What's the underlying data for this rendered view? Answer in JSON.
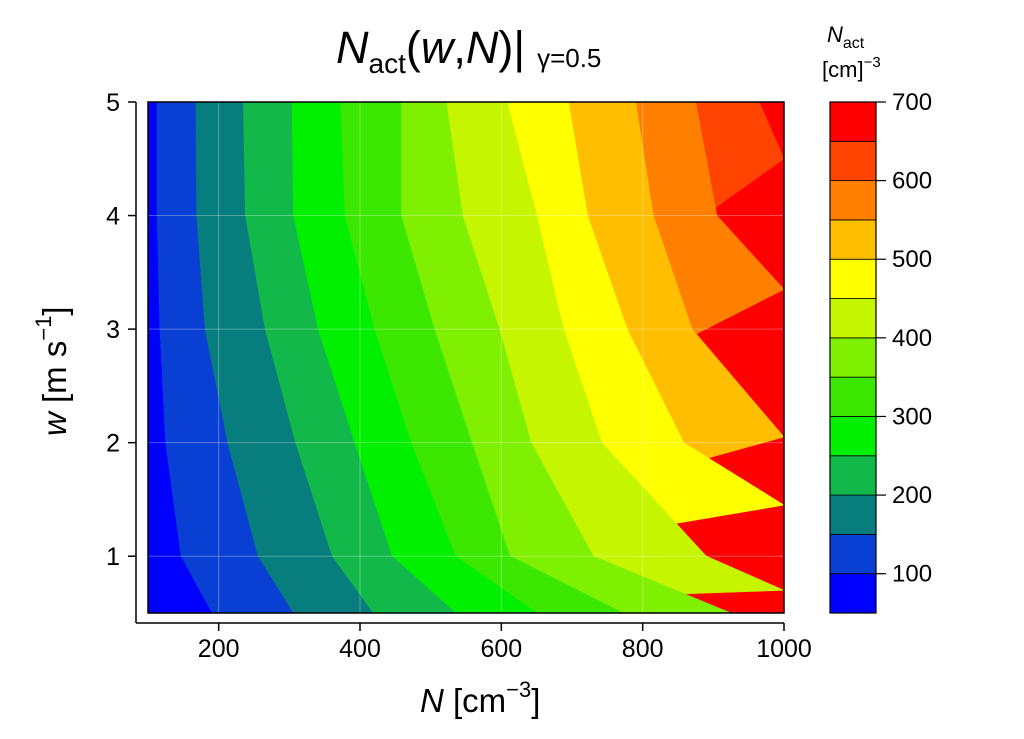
{
  "chart_data": {
    "type": "heatmap",
    "subtype": "filled-contour",
    "title": {
      "symbol": "N",
      "subscript": "act",
      "args_open": "(",
      "arg1": "w",
      "comma": ",",
      "arg2": "N",
      "args_close": ")|",
      "condition": "γ=0.5"
    },
    "xlabel": {
      "symbol": "N",
      "unit_open": " [cm",
      "unit_exp": "−3",
      "unit_close": "]"
    },
    "ylabel": {
      "symbol": "w",
      "unit_open": " [m s",
      "unit_exp": "−1",
      "unit_close": "]"
    },
    "xlim": [
      100,
      1000
    ],
    "ylim": [
      0.5,
      5
    ],
    "x_ticks": [
      200,
      400,
      600,
      800,
      1000
    ],
    "y_ticks": [
      1,
      2,
      3,
      4,
      5
    ],
    "x_tick_labels": [
      "200",
      "400",
      "600",
      "800",
      "1000"
    ],
    "y_tick_labels": [
      "1",
      "2",
      "3",
      "4",
      "5"
    ],
    "grid": true,
    "colorbar": {
      "title_symbol": "N",
      "title_subscript": "act",
      "unit_open": "[cm]",
      "unit_exp": "−3",
      "range": [
        50,
        700
      ],
      "level_edges": [
        50,
        100,
        150,
        200,
        250,
        300,
        350,
        400,
        450,
        500,
        550,
        600,
        650,
        700
      ],
      "colors": [
        "#0000ff",
        "#0a3fd4",
        "#077d7d",
        "#12b94a",
        "#00f000",
        "#3ce800",
        "#7ff000",
        "#c6f500",
        "#ffff00",
        "#ffbf00",
        "#ff8000",
        "#ff4300",
        "#ff0000"
      ],
      "tick_values": [
        100,
        200,
        300,
        400,
        500,
        600,
        700
      ],
      "tick_labels": [
        "100",
        "200",
        "300",
        "400",
        "500",
        "600",
        "700"
      ],
      "placement": "right"
    },
    "contours": [
      {
        "level": 100,
        "points": [
          [
            112,
            5.0
          ],
          [
            112,
            4.0
          ],
          [
            116,
            3.0
          ],
          [
            124,
            2.0
          ],
          [
            146,
            1.0
          ],
          [
            190,
            0.5
          ]
        ]
      },
      {
        "level": 150,
        "points": [
          [
            167,
            5.0
          ],
          [
            168,
            4.0
          ],
          [
            180,
            3.0
          ],
          [
            212,
            2.0
          ],
          [
            255,
            1.0
          ],
          [
            305,
            0.5
          ]
        ]
      },
      {
        "level": 200,
        "points": [
          [
            234,
            5.0
          ],
          [
            237,
            4.0
          ],
          [
            265,
            3.0
          ],
          [
            308,
            2.0
          ],
          [
            360,
            1.0
          ],
          [
            418,
            0.5
          ]
        ]
      },
      {
        "level": 250,
        "points": [
          [
            303,
            5.0
          ],
          [
            305,
            4.0
          ],
          [
            340,
            3.0
          ],
          [
            392,
            2.0
          ],
          [
            445,
            1.0
          ],
          [
            535,
            0.5
          ]
        ]
      },
      {
        "level": 300,
        "points": [
          [
            372,
            5.0
          ],
          [
            378,
            4.0
          ],
          [
            420,
            3.0
          ],
          [
            472,
            2.0
          ],
          [
            535,
            1.0
          ],
          [
            650,
            0.5
          ]
        ]
      },
      {
        "level": 350,
        "points": [
          [
            458,
            5.0
          ],
          [
            458,
            4.0
          ],
          [
            505,
            3.0
          ],
          [
            558,
            2.0
          ],
          [
            612,
            1.0
          ],
          [
            772,
            0.5
          ]
        ]
      },
      {
        "level": 400,
        "points": [
          [
            522,
            5.0
          ],
          [
            545,
            4.0
          ],
          [
            597,
            3.0
          ],
          [
            642,
            2.0
          ],
          [
            730,
            1.0
          ],
          [
            925,
            0.5
          ]
        ]
      },
      {
        "level": 450,
        "points": [
          [
            608,
            5.0
          ],
          [
            650,
            4.0
          ],
          [
            688,
            3.0
          ],
          [
            742,
            2.0
          ],
          [
            890,
            1.0
          ],
          [
            1000,
            0.7
          ]
        ]
      },
      {
        "level": 500,
        "points": [
          [
            695,
            5.0
          ],
          [
            722,
            4.0
          ],
          [
            778,
            3.0
          ],
          [
            858,
            2.0
          ],
          [
            1000,
            1.45
          ]
        ]
      },
      {
        "level": 550,
        "points": [
          [
            790,
            5.0
          ],
          [
            815,
            4.0
          ],
          [
            870,
            3.0
          ],
          [
            1000,
            2.05
          ]
        ]
      },
      {
        "level": 600,
        "points": [
          [
            875,
            5.0
          ],
          [
            905,
            4.0
          ],
          [
            1000,
            3.35
          ]
        ]
      },
      {
        "level": 650,
        "points": [
          [
            965,
            5.0
          ],
          [
            1000,
            4.5
          ]
        ]
      }
    ]
  }
}
